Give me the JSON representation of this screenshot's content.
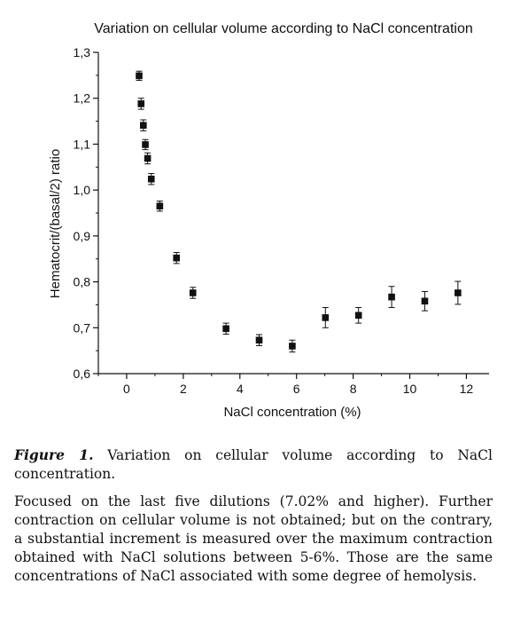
{
  "chart_data": {
    "type": "scatter",
    "title": "Variation on cellular volume according to NaCl concentration",
    "xlabel": "NaCl concentration (%)",
    "ylabel": "Hematocrit/(basal/2) ratio",
    "xlim": [
      -1,
      12.8
    ],
    "ylim": [
      0.6,
      1.3
    ],
    "x_ticks": [
      0,
      2,
      4,
      6,
      8,
      10,
      12
    ],
    "x_tick_labels": [
      "0",
      "2",
      "4",
      "6",
      "8",
      "10",
      "12"
    ],
    "y_ticks": [
      0.6,
      0.7,
      0.8,
      0.9,
      1.0,
      1.1,
      1.2,
      1.3
    ],
    "y_tick_labels": [
      "0,6",
      "0,7",
      "0,8",
      "0,9",
      "1,0",
      "1,1",
      "1,2",
      "1,3"
    ],
    "grid": false,
    "series": [
      {
        "marker": "square",
        "color": "#111111",
        "x": [
          0.44,
          0.51,
          0.59,
          0.66,
          0.74,
          0.87,
          1.17,
          1.76,
          2.34,
          3.51,
          4.68,
          5.85,
          7.02,
          8.19,
          9.36,
          10.53,
          11.7
        ],
        "y": [
          1.249,
          1.188,
          1.141,
          1.099,
          1.069,
          1.024,
          0.965,
          0.852,
          0.776,
          0.698,
          0.673,
          0.66,
          0.722,
          0.727,
          0.767,
          0.758,
          0.776
        ],
        "error": [
          0.01,
          0.012,
          0.012,
          0.011,
          0.012,
          0.012,
          0.011,
          0.012,
          0.012,
          0.012,
          0.012,
          0.013,
          0.022,
          0.017,
          0.023,
          0.021,
          0.025
        ]
      }
    ]
  },
  "caption": {
    "label": "Figure 1.",
    "text": " Variation on cellular volume according to NaCl concentration."
  },
  "body_text": "Focused on the last five dilutions (7.02% and higher). Further contraction on cellular volume is not obtained; but on the contrary, a substantial increment is measured over the maximum contraction obtained with NaCl solutions between 5-6%.  Those are the same concentrations of NaCl associated with some degree of hemolysis."
}
